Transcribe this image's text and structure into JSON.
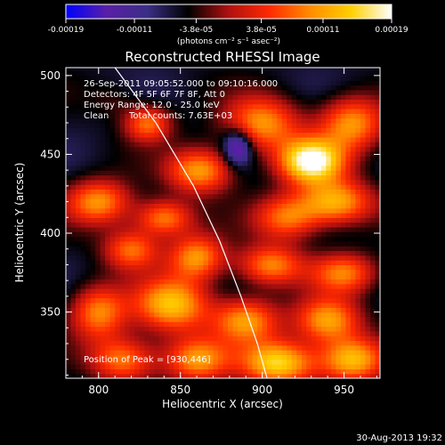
{
  "chart_data": {
    "type": "heatmap",
    "title": "Reconstructed RHESSI Image",
    "xlabel": "Heliocentric X (arcsec)",
    "ylabel": "Heliocentric Y (arcsec)",
    "xlim": [
      780,
      972
    ],
    "ylim": [
      308,
      505
    ],
    "x_ticks": [
      "800",
      "850",
      "900",
      "950"
    ],
    "y_ticks": [
      "350",
      "400",
      "450",
      "500"
    ],
    "x_tick_values": [
      800,
      850,
      900,
      950
    ],
    "y_tick_values": [
      350,
      400,
      450,
      500
    ],
    "colorbar": {
      "tick_labels": [
        "-0.00019",
        "-0.00011",
        "-3.8e-05",
        "3.8e-05",
        "0.00011",
        "0.00019"
      ],
      "tick_values": [
        -0.00019,
        -0.00011,
        -3.8e-05,
        3.8e-05,
        0.00011,
        0.00019
      ],
      "unit_label": "(photons cm⁻² s⁻¹ asec⁻²)",
      "range": [
        -0.00019,
        0.00019
      ],
      "colors": [
        "#0000ff",
        "#5a1fa6",
        "#3a2e86",
        "#000000",
        "#b01010",
        "#ff2a00",
        "#ff8c00",
        "#ffd000",
        "#ffffff"
      ]
    },
    "annotations": {
      "time_range": "26-Sep-2011 09:05:52.000 to 09:10:16.000",
      "detectors": "Detectors: 4F 5F 6F 7F 8F, Att 0",
      "energy_range": "Energy Range: 12.0 - 25.0 keV",
      "method": "Clean",
      "total_counts": "Total counts: 7.63E+03",
      "peak": "Position of Peak = [930,446]"
    },
    "peak_position": [
      930,
      446
    ],
    "limb_points": [
      [
        810,
        505
      ],
      [
        835,
        470
      ],
      [
        858,
        430
      ],
      [
        874,
        395
      ],
      [
        887,
        360
      ],
      [
        897,
        330
      ],
      [
        903,
        308
      ]
    ],
    "blobs": [
      {
        "x": 885,
        "y": 455,
        "value": -0.00019,
        "sx": 6,
        "sy": 8
      },
      {
        "x": 862,
        "y": 440,
        "value": 0.00011,
        "sx": 14,
        "sy": 10
      },
      {
        "x": 900,
        "y": 470,
        "value": 0.0001,
        "sx": 16,
        "sy": 12
      },
      {
        "x": 930,
        "y": 446,
        "value": 0.00019,
        "sx": 14,
        "sy": 10
      },
      {
        "x": 955,
        "y": 470,
        "value": 0.0001,
        "sx": 14,
        "sy": 12
      },
      {
        "x": 945,
        "y": 420,
        "value": 0.00012,
        "sx": 16,
        "sy": 10
      },
      {
        "x": 915,
        "y": 410,
        "value": 8e-05,
        "sx": 14,
        "sy": 10
      },
      {
        "x": 800,
        "y": 420,
        "value": 0.0001,
        "sx": 14,
        "sy": 10
      },
      {
        "x": 840,
        "y": 410,
        "value": 9e-05,
        "sx": 12,
        "sy": 8
      },
      {
        "x": 820,
        "y": 390,
        "value": 8e-05,
        "sx": 12,
        "sy": 9
      },
      {
        "x": 860,
        "y": 385,
        "value": 0.0001,
        "sx": 12,
        "sy": 10
      },
      {
        "x": 905,
        "y": 380,
        "value": 9e-05,
        "sx": 14,
        "sy": 9
      },
      {
        "x": 950,
        "y": 375,
        "value": 8e-05,
        "sx": 14,
        "sy": 9
      },
      {
        "x": 800,
        "y": 350,
        "value": 9e-05,
        "sx": 12,
        "sy": 12
      },
      {
        "x": 845,
        "y": 355,
        "value": 0.00013,
        "sx": 16,
        "sy": 12
      },
      {
        "x": 890,
        "y": 345,
        "value": 0.0001,
        "sx": 14,
        "sy": 10
      },
      {
        "x": 940,
        "y": 345,
        "value": 0.00011,
        "sx": 14,
        "sy": 10
      },
      {
        "x": 815,
        "y": 320,
        "value": 9e-05,
        "sx": 14,
        "sy": 10
      },
      {
        "x": 860,
        "y": 320,
        "value": 0.0001,
        "sx": 14,
        "sy": 10
      },
      {
        "x": 910,
        "y": 318,
        "value": 0.00015,
        "sx": 16,
        "sy": 10
      },
      {
        "x": 955,
        "y": 320,
        "value": 0.00013,
        "sx": 14,
        "sy": 10
      },
      {
        "x": 830,
        "y": 470,
        "value": 8e-05,
        "sx": 10,
        "sy": 8
      },
      {
        "x": 810,
        "y": 485,
        "value": -3e-05,
        "sx": 10,
        "sy": 8
      }
    ]
  },
  "footer": {
    "date": "30-Aug-2013 19:32"
  }
}
